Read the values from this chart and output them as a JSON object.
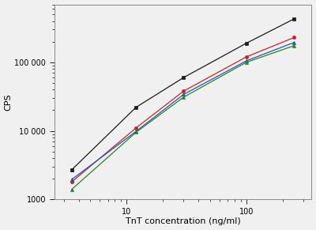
{
  "title": "",
  "xlabel": "TnT concentration (ng/ml)",
  "ylabel": "CPS",
  "xlim": [
    2.5,
    350
  ],
  "ylim": [
    1000,
    700000
  ],
  "series": [
    {
      "name": "black",
      "color": "#1a1a1a",
      "marker": "s",
      "x": [
        3.5,
        12,
        30,
        100,
        250
      ],
      "y": [
        2700,
        22000,
        60000,
        190000,
        430000
      ]
    },
    {
      "name": "red",
      "color": "#cc2222",
      "marker": "o",
      "x": [
        3.5,
        12,
        30,
        100,
        250
      ],
      "y": [
        1800,
        11000,
        38000,
        120000,
        230000
      ]
    },
    {
      "name": "blue",
      "color": "#2255bb",
      "marker": "^",
      "x": [
        3.5,
        12,
        30,
        100,
        250
      ],
      "y": [
        1950,
        9800,
        34000,
        105000,
        195000
      ]
    },
    {
      "name": "green",
      "color": "#228822",
      "marker": "^",
      "x": [
        3.5,
        12,
        30,
        100,
        250
      ],
      "y": [
        1400,
        9500,
        31000,
        100000,
        175000
      ]
    }
  ],
  "background_color": "#f0f0f0",
  "linewidth": 0.9,
  "markersize": 3,
  "tick_label_fontsize": 7,
  "axis_label_fontsize": 8
}
